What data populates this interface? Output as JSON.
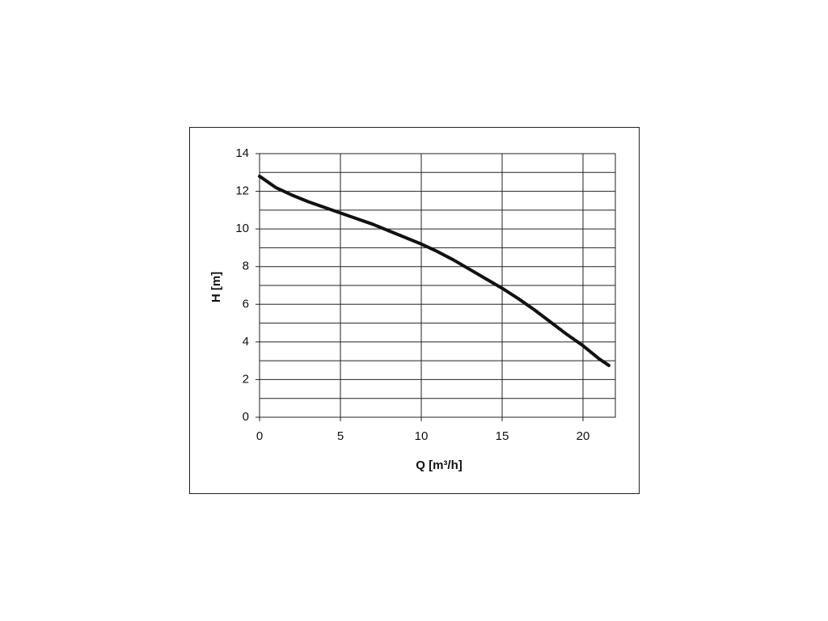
{
  "chart_data": {
    "type": "line",
    "x_label": "Q [m³/h]",
    "y_label": "H [m]",
    "x": [
      0,
      1,
      2,
      3,
      4,
      5,
      6,
      7,
      8,
      9,
      10,
      11,
      12,
      13,
      14,
      15,
      16,
      17,
      18,
      19,
      20,
      21,
      21.6
    ],
    "series": [
      {
        "color": "#111111",
        "values": [
          12.8,
          12.2,
          11.8,
          11.45,
          11.15,
          10.85,
          10.55,
          10.25,
          9.9,
          9.55,
          9.2,
          8.8,
          8.35,
          7.85,
          7.35,
          6.85,
          6.3,
          5.7,
          5.05,
          4.4,
          3.8,
          3.1,
          2.75
        ]
      }
    ],
    "xlim": [
      0,
      22
    ],
    "xticks": [
      0,
      5,
      10,
      15,
      20
    ],
    "ylim": [
      0,
      14
    ],
    "yticks": [
      0,
      2,
      4,
      6,
      8,
      10,
      12,
      14
    ],
    "ygrid": [
      1,
      3,
      5,
      7,
      9,
      11,
      13
    ],
    "grid": true
  }
}
